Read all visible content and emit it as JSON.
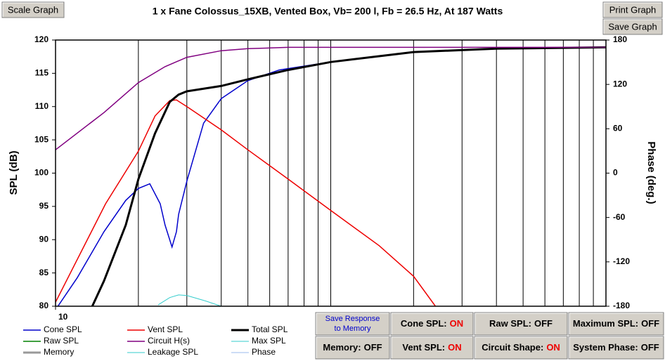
{
  "top_buttons": [
    "Scale Graph",
    "Print Graph",
    "Save Graph"
  ],
  "chart_data": {
    "type": "line",
    "title": "1 x Fane Colossus_15XB,  Vented Box, Vb= 200 l,  Fb = 26.5 Hz,  At 187 Watts",
    "ylabel": "SPL (dB)",
    "y2label": "Phase (deg.)",
    "xscale": "log",
    "xlim": [
      10,
      1000
    ],
    "xticks": [
      10
    ],
    "xgrid_lines": [
      20,
      30,
      40,
      50,
      60,
      70,
      80,
      90,
      100,
      200,
      300,
      400,
      500,
      600,
      700,
      800,
      900
    ],
    "grid": true,
    "ylim": [
      80,
      120
    ],
    "yticks": [
      80,
      85,
      90,
      95,
      100,
      105,
      110,
      115,
      120
    ],
    "y2lim": [
      -180,
      180
    ],
    "y2ticks": [
      -180,
      -120,
      -60,
      0,
      60,
      120,
      180
    ],
    "series": [
      {
        "name": "Cone SPL",
        "color": "#0000cc",
        "width": 1.5,
        "x": [
          10.2,
          12,
          15,
          18,
          20,
          22,
          24,
          25,
          26.5,
          27.5,
          28,
          30,
          34.5,
          40,
          50,
          65,
          100,
          200,
          385,
          1000
        ],
        "values": [
          80,
          84.3,
          91.2,
          95.9,
          97.7,
          98.4,
          95.4,
          92.2,
          88.9,
          91.2,
          93.8,
          98.8,
          107.5,
          111.2,
          113.9,
          115.5,
          116.7,
          118.2,
          118.7,
          118.9
        ]
      },
      {
        "name": "Vent SPL",
        "color": "#ee0000",
        "width": 1.5,
        "x": [
          10,
          15.2,
          20,
          23,
          26,
          27.5,
          30,
          40,
          50,
          70,
          100,
          150,
          200,
          240
        ],
        "values": [
          80.6,
          95.4,
          103.3,
          108.6,
          110.9,
          111,
          110,
          106.5,
          103.5,
          99.1,
          94.4,
          89.1,
          84.5,
          80
        ]
      },
      {
        "name": "Total SPL",
        "color": "#000000",
        "width": 3,
        "x": [
          13.6,
          15,
          18,
          20,
          23,
          26,
          28,
          30,
          40,
          50,
          70,
          100,
          200,
          400,
          1000
        ],
        "values": [
          80,
          83.8,
          92.2,
          99.1,
          106,
          110.7,
          111.8,
          112.3,
          113.1,
          114.1,
          115.5,
          116.7,
          118.2,
          118.7,
          118.9
        ]
      },
      {
        "name": "Raw SPL",
        "color": "#008000",
        "width": 1.5,
        "x": [],
        "values": []
      },
      {
        "name": "Circuit H(s)",
        "color": "#800080",
        "width": 1.5,
        "x": [
          10,
          15,
          20,
          25,
          30,
          40,
          50,
          70,
          1000
        ],
        "values": [
          103.5,
          109.1,
          113.6,
          116,
          117.4,
          118.4,
          118.7,
          118.9,
          118.9
        ]
      },
      {
        "name": "Max SPL",
        "color": "#33cccc",
        "width": 1,
        "x": [
          23.6,
          26,
          28,
          30,
          35,
          40
        ],
        "values": [
          80.2,
          81.3,
          81.7,
          81.6,
          80.8,
          80
        ]
      },
      {
        "name": "Memory",
        "color": "#999999",
        "width": 3,
        "x": [],
        "values": []
      },
      {
        "name": "Leakage SPL",
        "color": "#33cccc",
        "width": 1,
        "x": [],
        "values": []
      },
      {
        "name": "Phase",
        "color": "#99bbee",
        "width": 1,
        "x": [],
        "values": []
      }
    ]
  },
  "controls": [
    {
      "lines": [
        "Save Response",
        "to Memory"
      ],
      "color": "#0000cc"
    },
    {
      "label": "Cone SPL:",
      "state": "ON",
      "color": "#ee0000"
    },
    {
      "label": "Raw SPL:",
      "state": "OFF",
      "color": "#000000"
    },
    {
      "label": "Maximum SPL:",
      "state": "OFF",
      "color": "#000000"
    },
    {
      "label": "Memory:",
      "state": "OFF",
      "color": "#000000"
    },
    {
      "label": "Vent SPL:",
      "state": "ON",
      "color": "#ee0000"
    },
    {
      "label": "Circuit Shape:",
      "state": "ON",
      "color": "#ee0000"
    },
    {
      "label": "System Phase:",
      "state": "OFF",
      "color": "#000000"
    }
  ]
}
